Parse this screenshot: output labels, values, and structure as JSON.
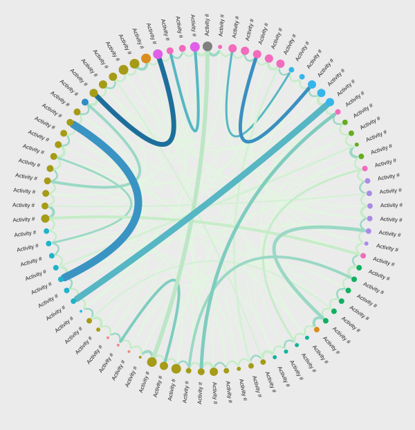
{
  "diagram": {
    "type": "chord",
    "node_label": "Activity #",
    "palette": {
      "gray": "#808080",
      "pink": "#f26bbd",
      "magenta": "#e05ee8",
      "blue": "#1a9fe2",
      "lightblue": "#35b6ea",
      "green": "#63ad1f",
      "purple": "#a98be6",
      "teal": "#13b39a",
      "emerald": "#10b060",
      "orange": "#d98d1a",
      "olive": "#a59b17",
      "salmon": "#f08a7e",
      "cyan": "#1fb3c9",
      "steel": "#2f8cc3"
    },
    "nodes": [
      {
        "color": "gray",
        "size": 7
      },
      {
        "color": "pink",
        "size": 3
      },
      {
        "color": "pink",
        "size": 6
      },
      {
        "color": "pink",
        "size": 6
      },
      {
        "color": "pink",
        "size": 6
      },
      {
        "color": "pink",
        "size": 6
      },
      {
        "color": "pink",
        "size": 6
      },
      {
        "color": "lightblue",
        "size": 4
      },
      {
        "color": "lightblue",
        "size": 4
      },
      {
        "color": "lightblue",
        "size": 6
      },
      {
        "color": "lightblue",
        "size": 6
      },
      {
        "color": "lightblue",
        "size": 6
      },
      {
        "color": "pink",
        "size": 4
      },
      {
        "color": "green",
        "size": 4
      },
      {
        "color": "green",
        "size": 4
      },
      {
        "color": "green",
        "size": 3
      },
      {
        "color": "green",
        "size": 4
      },
      {
        "color": "pink",
        "size": 4
      },
      {
        "color": "purple",
        "size": 4
      },
      {
        "color": "purple",
        "size": 4
      },
      {
        "color": "purple",
        "size": 4
      },
      {
        "color": "purple",
        "size": 4
      },
      {
        "color": "purple",
        "size": 4
      },
      {
        "color": "purple",
        "size": 3
      },
      {
        "color": "pink",
        "size": 4
      },
      {
        "color": "emerald",
        "size": 4
      },
      {
        "color": "emerald",
        "size": 4
      },
      {
        "color": "emerald",
        "size": 4
      },
      {
        "color": "emerald",
        "size": 4
      },
      {
        "color": "emerald",
        "size": 4
      },
      {
        "color": "emerald",
        "size": 4
      },
      {
        "color": "orange",
        "size": 4
      },
      {
        "color": "teal",
        "size": 3
      },
      {
        "color": "teal",
        "size": 3
      },
      {
        "color": "teal",
        "size": 3
      },
      {
        "color": "teal",
        "size": 3
      },
      {
        "color": "olive",
        "size": 4
      },
      {
        "color": "olive",
        "size": 4
      },
      {
        "color": "olive",
        "size": 3
      },
      {
        "color": "olive",
        "size": 4
      },
      {
        "color": "olive",
        "size": 6
      },
      {
        "color": "olive",
        "size": 5
      },
      {
        "color": "olive",
        "size": 4
      },
      {
        "color": "olive",
        "size": 7
      },
      {
        "color": "olive",
        "size": 6
      },
      {
        "color": "olive",
        "size": 7
      },
      {
        "color": "olive",
        "size": 2
      },
      {
        "color": "salmon",
        "size": 2
      },
      {
        "color": "salmon",
        "size": 2
      },
      {
        "color": "salmon",
        "size": 2
      },
      {
        "color": "olive",
        "size": 3
      },
      {
        "color": "olive",
        "size": 4
      },
      {
        "color": "lightblue",
        "size": 2
      },
      {
        "color": "cyan",
        "size": 4
      },
      {
        "color": "cyan",
        "size": 4
      },
      {
        "color": "cyan",
        "size": 4
      },
      {
        "color": "cyan",
        "size": 4
      },
      {
        "color": "cyan",
        "size": 4
      },
      {
        "color": "cyan",
        "size": 4
      },
      {
        "color": "cyan",
        "size": 4
      },
      {
        "color": "olive",
        "size": 6
      },
      {
        "color": "olive",
        "size": 5
      },
      {
        "color": "olive",
        "size": 5
      },
      {
        "color": "olive",
        "size": 5
      },
      {
        "color": "olive",
        "size": 5
      },
      {
        "color": "olive",
        "size": 5
      },
      {
        "color": "olive",
        "size": 5
      },
      {
        "color": "olive",
        "size": 5
      },
      {
        "color": "olive",
        "size": 5
      },
      {
        "color": "olive",
        "size": 5
      },
      {
        "color": "steel",
        "size": 5
      },
      {
        "color": "olive",
        "size": 6
      },
      {
        "color": "olive",
        "size": 6
      },
      {
        "color": "olive",
        "size": 6
      },
      {
        "color": "olive",
        "size": 7
      },
      {
        "color": "olive",
        "size": 7
      },
      {
        "color": "orange",
        "size": 7
      },
      {
        "color": "magenta",
        "size": 7
      },
      {
        "color": "pink",
        "size": 5
      },
      {
        "color": "pink",
        "size": 5
      },
      {
        "color": "magenta",
        "size": 7
      }
    ],
    "links": [
      {
        "from": 11,
        "to": 53,
        "weight": 9,
        "color": "#56b6c4"
      },
      {
        "from": 68,
        "to": 55,
        "weight": 11,
        "color": "#3a94c3"
      },
      {
        "from": 77,
        "to": 71,
        "weight": 7,
        "color": "#1e6e9b"
      },
      {
        "from": 0,
        "to": 45,
        "weight": 6,
        "color": "#bde6c6"
      },
      {
        "from": 4,
        "to": 9,
        "weight": 5,
        "color": "#3a8fc0"
      },
      {
        "from": 12,
        "to": 41,
        "weight": 5,
        "color": "#7fccbf"
      },
      {
        "from": 30,
        "to": 22,
        "weight": 5,
        "color": "#9ad8c5"
      },
      {
        "from": 26,
        "to": 42,
        "weight": 4,
        "color": "#9ad8c5"
      },
      {
        "from": 60,
        "to": 24,
        "weight": 4,
        "color": "#c6ecc8"
      },
      {
        "from": 48,
        "to": 44,
        "weight": 4,
        "color": "#7fccbf"
      },
      {
        "from": 63,
        "to": 70,
        "weight": 4,
        "color": "#9ad8c5"
      },
      {
        "from": 78,
        "to": 80,
        "weight": 4,
        "color": "#56b6c4"
      },
      {
        "from": 2,
        "to": 7,
        "weight": 3,
        "color": "#56b6c4"
      },
      {
        "from": 33,
        "to": 17,
        "weight": 3,
        "color": "#c6ecc8"
      },
      {
        "from": 58,
        "to": 65,
        "weight": 3,
        "color": "#9ad8c5"
      },
      {
        "from": 15,
        "to": 56,
        "weight": 3,
        "color": "#d3f0d5"
      },
      {
        "from": 37,
        "to": 6,
        "weight": 3,
        "color": "#d3f0d5"
      },
      {
        "from": 19,
        "to": 61,
        "weight": 2,
        "color": "#d3f0d5"
      },
      {
        "from": 29,
        "to": 51,
        "weight": 2,
        "color": "#d3f0d5"
      },
      {
        "from": 73,
        "to": 36,
        "weight": 2,
        "color": "#d3f0d5"
      }
    ]
  }
}
